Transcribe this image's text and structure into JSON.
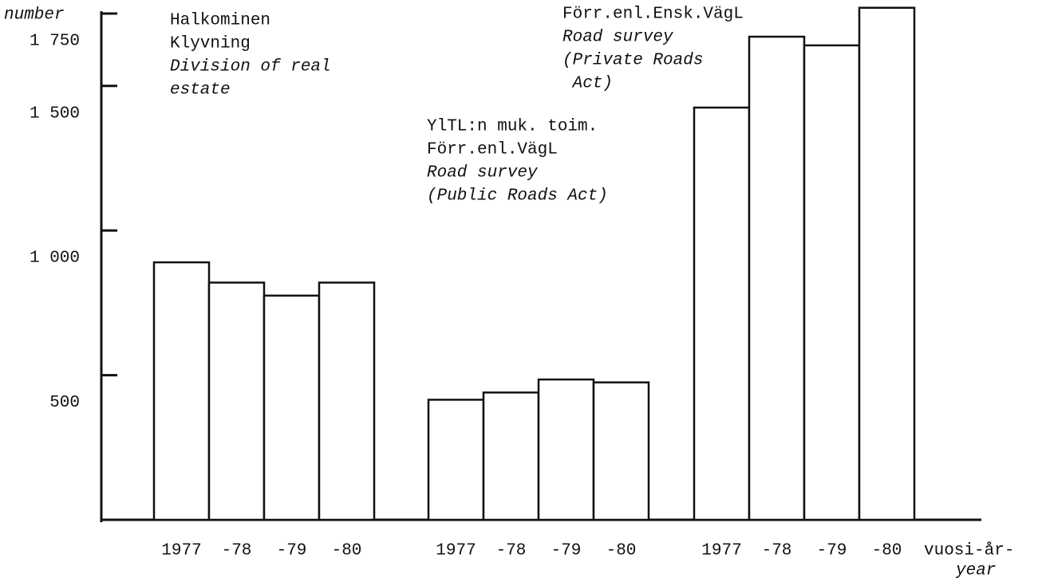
{
  "chart_data": {
    "type": "bar",
    "y_label": "number",
    "x_label": [
      "vuosi-år-",
      "year"
    ],
    "ylim": [
      0,
      1750
    ],
    "yticks": [
      {
        "value": 500,
        "label": "500"
      },
      {
        "value": 1000,
        "label": "1 000"
      },
      {
        "value": 1500,
        "label": "1 500"
      },
      {
        "value": 1750,
        "label": "1 750"
      }
    ],
    "color": "#ffffff",
    "groups": [
      {
        "lines": [
          "Halkominen",
          "Klyvning"
        ],
        "english_lines": [
          "Division of real",
          "estate"
        ],
        "categories": [
          "1977",
          "-78",
          "-79",
          "-80"
        ],
        "values": [
          890,
          820,
          775,
          820
        ]
      },
      {
        "lines": [
          "YlTL:n muk. toim.",
          "Förr.enl.VägL"
        ],
        "english_lines": [
          "Road survey",
          "(Public Roads Act)"
        ],
        "categories": [
          "1977",
          "-78",
          "-79",
          "-80"
        ],
        "values": [
          415,
          440,
          485,
          475
        ]
      },
      {
        "lines": [
          "Förr.enl.Ensk.VägL"
        ],
        "english_lines": [
          "Road survey",
          "(Private Roads",
          " Act)"
        ],
        "categories": [
          "1977",
          "-78",
          "-79",
          "-80"
        ],
        "values": [
          1425,
          1670,
          1640,
          1770
        ]
      }
    ]
  }
}
